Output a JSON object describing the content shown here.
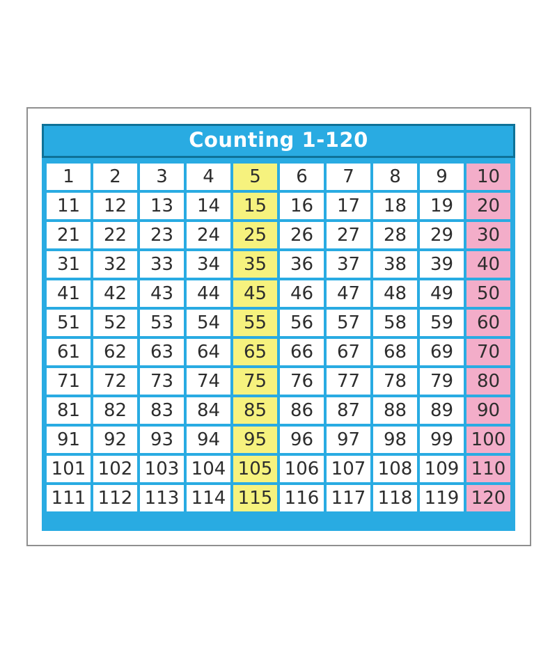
{
  "header": {
    "title": "Counting 1-120"
  },
  "chart_data": {
    "type": "table",
    "title": "Counting 1-120",
    "columns": 10,
    "rows": [
      [
        1,
        2,
        3,
        4,
        5,
        6,
        7,
        8,
        9,
        10
      ],
      [
        11,
        12,
        13,
        14,
        15,
        16,
        17,
        18,
        19,
        20
      ],
      [
        21,
        22,
        23,
        24,
        25,
        26,
        27,
        28,
        29,
        30
      ],
      [
        31,
        32,
        33,
        34,
        35,
        36,
        37,
        38,
        39,
        40
      ],
      [
        41,
        42,
        43,
        44,
        45,
        46,
        47,
        48,
        49,
        50
      ],
      [
        51,
        52,
        53,
        54,
        55,
        56,
        57,
        58,
        59,
        60
      ],
      [
        61,
        62,
        63,
        64,
        65,
        66,
        67,
        68,
        69,
        70
      ],
      [
        71,
        72,
        73,
        74,
        75,
        76,
        77,
        78,
        79,
        80
      ],
      [
        81,
        82,
        83,
        84,
        85,
        86,
        87,
        88,
        89,
        90
      ],
      [
        91,
        92,
        93,
        94,
        95,
        96,
        97,
        98,
        99,
        100
      ],
      [
        101,
        102,
        103,
        104,
        105,
        106,
        107,
        108,
        109,
        110
      ],
      [
        111,
        112,
        113,
        114,
        115,
        116,
        117,
        118,
        119,
        120
      ]
    ],
    "highlighted_columns": {
      "yellow_column_index": 4,
      "pink_column_index": 9
    },
    "notes": "Fifth column (numbers ending in 5) highlighted yellow; tenth column (multiples of 10) highlighted pink"
  },
  "colors": {
    "panel_blue": "#29abe2",
    "header_border": "#0e7298",
    "title_text": "#ffffff",
    "cell_white": "#ffffff",
    "cell_yellow": "#f6f27e",
    "cell_pink": "#f3adc9",
    "number_text": "#2d2d2d",
    "card_border": "#8f8f8f",
    "page_background": "#ffffff"
  }
}
